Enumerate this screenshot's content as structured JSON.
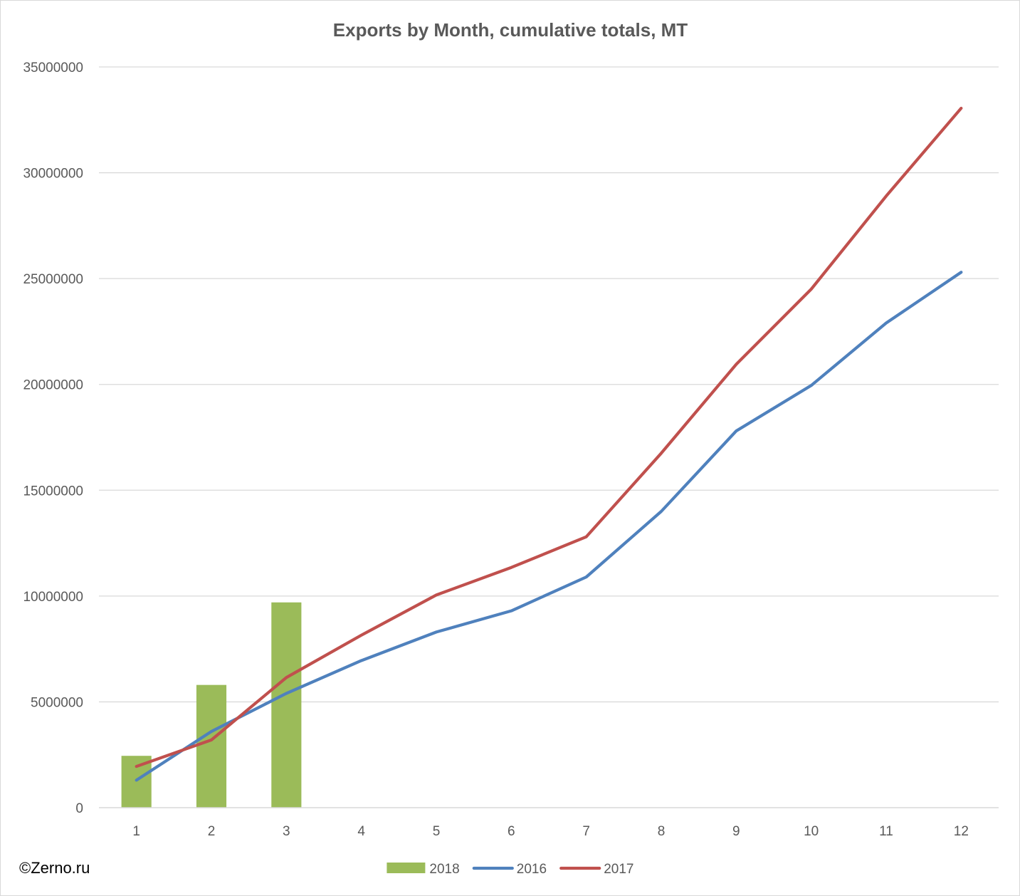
{
  "copyright": "©Zerno.ru",
  "chart_data": {
    "type": "bar",
    "title": "Exports by Month, cumulative totals, MT",
    "xlabel": "",
    "ylabel": "",
    "categories": [
      "1",
      "2",
      "3",
      "4",
      "5",
      "6",
      "7",
      "8",
      "9",
      "10",
      "11",
      "12"
    ],
    "ylim": [
      0,
      35000000
    ],
    "yticks": [
      0,
      5000000,
      10000000,
      15000000,
      20000000,
      25000000,
      30000000,
      35000000
    ],
    "ytick_labels": [
      "0",
      "5000000",
      "10000000",
      "15000000",
      "20000000",
      "25000000",
      "30000000",
      "35000000"
    ],
    "grid": "horizontal",
    "legend_position": "bottom",
    "series": [
      {
        "name": "2018",
        "type": "bar",
        "color": "#9bbb59",
        "values": [
          2450000,
          5800000,
          9700000,
          null,
          null,
          null,
          null,
          null,
          null,
          null,
          null,
          null
        ]
      },
      {
        "name": "2016",
        "type": "line",
        "color": "#4f81bd",
        "values": [
          1300000,
          3600000,
          5400000,
          6950000,
          8300000,
          9300000,
          10900000,
          14000000,
          17800000,
          19950000,
          22900000,
          25300000
        ]
      },
      {
        "name": "2017",
        "type": "line",
        "color": "#c0504d",
        "values": [
          1950000,
          3200000,
          6150000,
          8150000,
          10050000,
          11350000,
          12800000,
          16750000,
          20950000,
          24500000,
          28900000,
          33050000
        ]
      }
    ]
  }
}
